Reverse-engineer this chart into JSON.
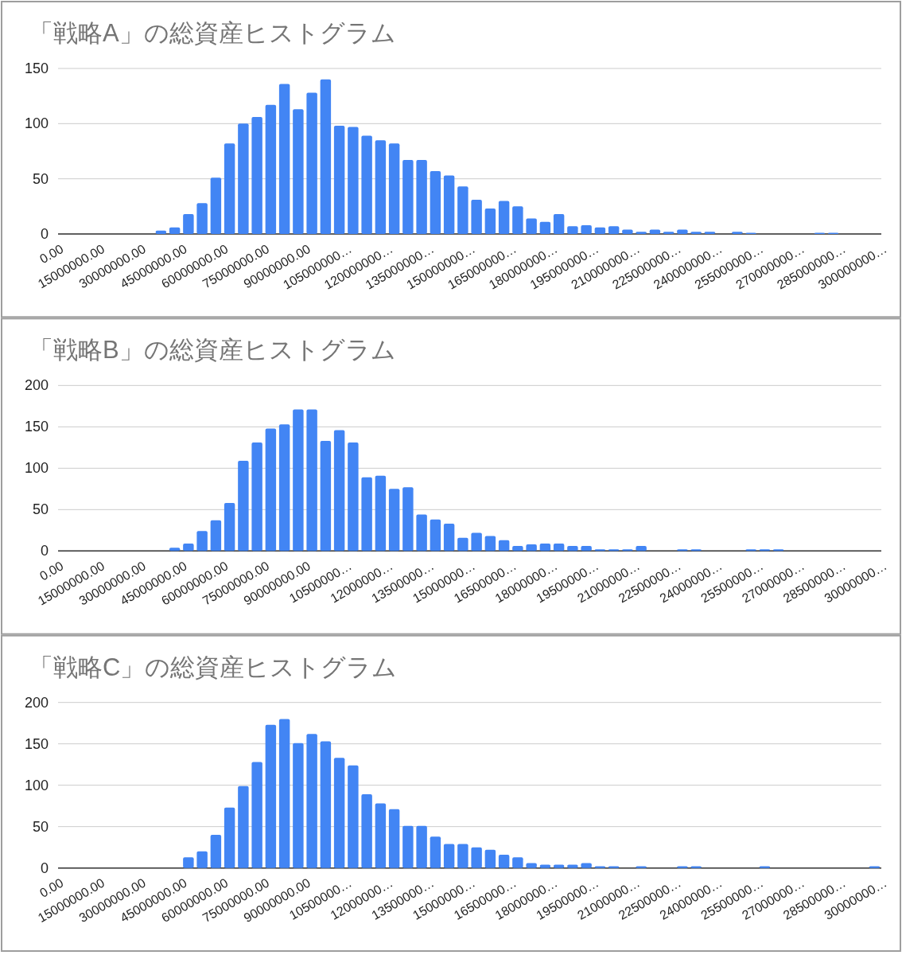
{
  "chart_data": [
    {
      "type": "histogram",
      "title": "「戦略A」の総資産ヒストグラム",
      "color": "#4285f4",
      "grid": "y",
      "bins": [
        0,
        5000000,
        10000000,
        15000000,
        20000000,
        25000000,
        30000000,
        35000000,
        40000000,
        45000000,
        50000000,
        55000000,
        60000000,
        65000000,
        70000000,
        75000000,
        80000000,
        85000000,
        90000000,
        95000000,
        100000000,
        105000000,
        110000000,
        115000000,
        120000000,
        125000000,
        130000000,
        135000000,
        140000000,
        145000000,
        150000000,
        155000000,
        160000000,
        165000000,
        170000000,
        175000000,
        180000000,
        185000000,
        190000000,
        195000000,
        200000000,
        205000000,
        210000000,
        215000000,
        220000000,
        225000000,
        230000000,
        235000000,
        240000000,
        245000000,
        250000000,
        255000000,
        260000000,
        265000000,
        270000000,
        275000000,
        280000000,
        285000000,
        290000000,
        295000000,
        300000000
      ],
      "values": [
        0,
        0,
        0,
        0,
        0,
        0,
        0,
        3,
        6,
        18,
        28,
        51,
        82,
        100,
        106,
        117,
        136,
        113,
        128,
        140,
        98,
        97,
        89,
        85,
        82,
        67,
        67,
        57,
        53,
        43,
        31,
        23,
        30,
        25,
        14,
        11,
        18,
        7,
        8,
        6,
        7,
        4,
        2,
        4,
        2,
        4,
        2,
        2,
        0,
        2,
        1,
        0,
        0,
        0,
        0,
        1,
        1,
        0,
        0,
        0
      ],
      "xlim": [
        0,
        300000000
      ],
      "xticks": [
        {
          "value": 0,
          "label": "0.00"
        },
        {
          "value": 15000000,
          "label": "15000000.00"
        },
        {
          "value": 30000000,
          "label": "30000000.00"
        },
        {
          "value": 45000000,
          "label": "45000000.00"
        },
        {
          "value": 60000000,
          "label": "60000000.00"
        },
        {
          "value": 75000000,
          "label": "75000000.00"
        },
        {
          "value": 90000000,
          "label": "90000000.00"
        },
        {
          "value": 105000000,
          "label": "105000000…"
        },
        {
          "value": 120000000,
          "label": "120000000…"
        },
        {
          "value": 135000000,
          "label": "135000000…"
        },
        {
          "value": 150000000,
          "label": "150000000…"
        },
        {
          "value": 165000000,
          "label": "165000000…"
        },
        {
          "value": 180000000,
          "label": "180000000…"
        },
        {
          "value": 195000000,
          "label": "195000000…"
        },
        {
          "value": 210000000,
          "label": "210000000…"
        },
        {
          "value": 225000000,
          "label": "225000000…"
        },
        {
          "value": 240000000,
          "label": "240000000…"
        },
        {
          "value": 255000000,
          "label": "255000000…"
        },
        {
          "value": 270000000,
          "label": "270000000…"
        },
        {
          "value": 285000000,
          "label": "285000000…"
        },
        {
          "value": 300000000,
          "label": "300000000…"
        }
      ],
      "ylim": [
        0,
        150
      ],
      "yticks": [
        0,
        50,
        100,
        150
      ]
    },
    {
      "type": "histogram",
      "title": "「戦略B」の総資産ヒストグラム",
      "color": "#4285f4",
      "grid": "y",
      "bins": [
        0,
        5000000,
        10000000,
        15000000,
        20000000,
        25000000,
        30000000,
        35000000,
        40000000,
        45000000,
        50000000,
        55000000,
        60000000,
        65000000,
        70000000,
        75000000,
        80000000,
        85000000,
        90000000,
        95000000,
        100000000,
        105000000,
        110000000,
        115000000,
        120000000,
        125000000,
        130000000,
        135000000,
        140000000,
        145000000,
        150000000,
        155000000,
        160000000,
        165000000,
        170000000,
        175000000,
        180000000,
        185000000,
        190000000,
        195000000,
        200000000,
        205000000,
        210000000,
        215000000,
        220000000,
        225000000,
        230000000,
        235000000,
        240000000,
        245000000,
        250000000,
        255000000,
        260000000,
        265000000,
        270000000,
        275000000,
        280000000,
        285000000,
        290000000,
        295000000,
        300000000
      ],
      "values": [
        0,
        0,
        0,
        0,
        0,
        0,
        0,
        0,
        4,
        9,
        24,
        37,
        58,
        109,
        131,
        148,
        153,
        171,
        171,
        133,
        146,
        131,
        89,
        91,
        75,
        77,
        44,
        38,
        33,
        16,
        22,
        18,
        13,
        6,
        8,
        9,
        9,
        6,
        6,
        2,
        2,
        2,
        6,
        0,
        0,
        2,
        2,
        0,
        0,
        0,
        2,
        2,
        2,
        0,
        0,
        0,
        0,
        0,
        0,
        0
      ],
      "xlim": [
        0,
        300000000
      ],
      "xticks": [
        {
          "value": 0,
          "label": "0.00"
        },
        {
          "value": 15000000,
          "label": "15000000.00"
        },
        {
          "value": 30000000,
          "label": "30000000.00"
        },
        {
          "value": 45000000,
          "label": "45000000.00"
        },
        {
          "value": 60000000,
          "label": "60000000.00"
        },
        {
          "value": 75000000,
          "label": "75000000.00"
        },
        {
          "value": 90000000,
          "label": "90000000.00"
        },
        {
          "value": 105000000,
          "label": "10500000…"
        },
        {
          "value": 120000000,
          "label": "12000000…"
        },
        {
          "value": 135000000,
          "label": "13500000…"
        },
        {
          "value": 150000000,
          "label": "15000000…"
        },
        {
          "value": 165000000,
          "label": "16500000…"
        },
        {
          "value": 180000000,
          "label": "18000000…"
        },
        {
          "value": 195000000,
          "label": "19500000…"
        },
        {
          "value": 210000000,
          "label": "21000000…"
        },
        {
          "value": 225000000,
          "label": "22500000…"
        },
        {
          "value": 240000000,
          "label": "24000000…"
        },
        {
          "value": 255000000,
          "label": "25500000…"
        },
        {
          "value": 270000000,
          "label": "27000000…"
        },
        {
          "value": 285000000,
          "label": "28500000…"
        },
        {
          "value": 300000000,
          "label": "30000000…"
        }
      ],
      "ylim": [
        0,
        200
      ],
      "yticks": [
        0,
        50,
        100,
        150,
        200
      ]
    },
    {
      "type": "histogram",
      "title": "「戦略C」の総資産ヒストグラム",
      "color": "#4285f4",
      "grid": "y",
      "bins": [
        0,
        5000000,
        10000000,
        15000000,
        20000000,
        25000000,
        30000000,
        35000000,
        40000000,
        45000000,
        50000000,
        55000000,
        60000000,
        65000000,
        70000000,
        75000000,
        80000000,
        85000000,
        90000000,
        95000000,
        100000000,
        105000000,
        110000000,
        115000000,
        120000000,
        125000000,
        130000000,
        135000000,
        140000000,
        145000000,
        150000000,
        155000000,
        160000000,
        165000000,
        170000000,
        175000000,
        180000000,
        185000000,
        190000000,
        195000000,
        200000000,
        205000000,
        210000000,
        215000000,
        220000000,
        225000000,
        230000000,
        235000000,
        240000000,
        245000000,
        250000000,
        255000000,
        260000000,
        265000000,
        270000000,
        275000000,
        280000000,
        285000000,
        290000000,
        295000000,
        300000000
      ],
      "values": [
        0,
        0,
        0,
        0,
        0,
        0,
        0,
        0,
        0,
        13,
        20,
        40,
        73,
        99,
        128,
        173,
        180,
        151,
        162,
        153,
        133,
        124,
        89,
        78,
        71,
        51,
        51,
        38,
        29,
        29,
        25,
        22,
        16,
        13,
        6,
        4,
        4,
        4,
        6,
        2,
        2,
        0,
        2,
        0,
        0,
        2,
        2,
        0,
        0,
        0,
        0,
        2,
        0,
        0,
        0,
        0,
        0,
        0,
        0,
        2
      ],
      "xlim": [
        0,
        300000000
      ],
      "xticks": [
        {
          "value": 0,
          "label": "0.00"
        },
        {
          "value": 15000000,
          "label": "15000000.00"
        },
        {
          "value": 30000000,
          "label": "30000000.00"
        },
        {
          "value": 45000000,
          "label": "45000000.00"
        },
        {
          "value": 60000000,
          "label": "60000000.00"
        },
        {
          "value": 75000000,
          "label": "75000000.00"
        },
        {
          "value": 90000000,
          "label": "90000000.00"
        },
        {
          "value": 105000000,
          "label": "10500000…"
        },
        {
          "value": 120000000,
          "label": "12000000…"
        },
        {
          "value": 135000000,
          "label": "13500000…"
        },
        {
          "value": 150000000,
          "label": "15000000…"
        },
        {
          "value": 165000000,
          "label": "16500000…"
        },
        {
          "value": 180000000,
          "label": "18000000…"
        },
        {
          "value": 195000000,
          "label": "19500000…"
        },
        {
          "value": 210000000,
          "label": "21000000…"
        },
        {
          "value": 225000000,
          "label": "22500000…"
        },
        {
          "value": 240000000,
          "label": "24000000…"
        },
        {
          "value": 255000000,
          "label": "25500000…"
        },
        {
          "value": 270000000,
          "label": "27000000…"
        },
        {
          "value": 285000000,
          "label": "28500000…"
        },
        {
          "value": 300000000,
          "label": "30000000…"
        }
      ],
      "ylim": [
        0,
        200
      ],
      "yticks": [
        0,
        50,
        100,
        150,
        200
      ]
    }
  ]
}
